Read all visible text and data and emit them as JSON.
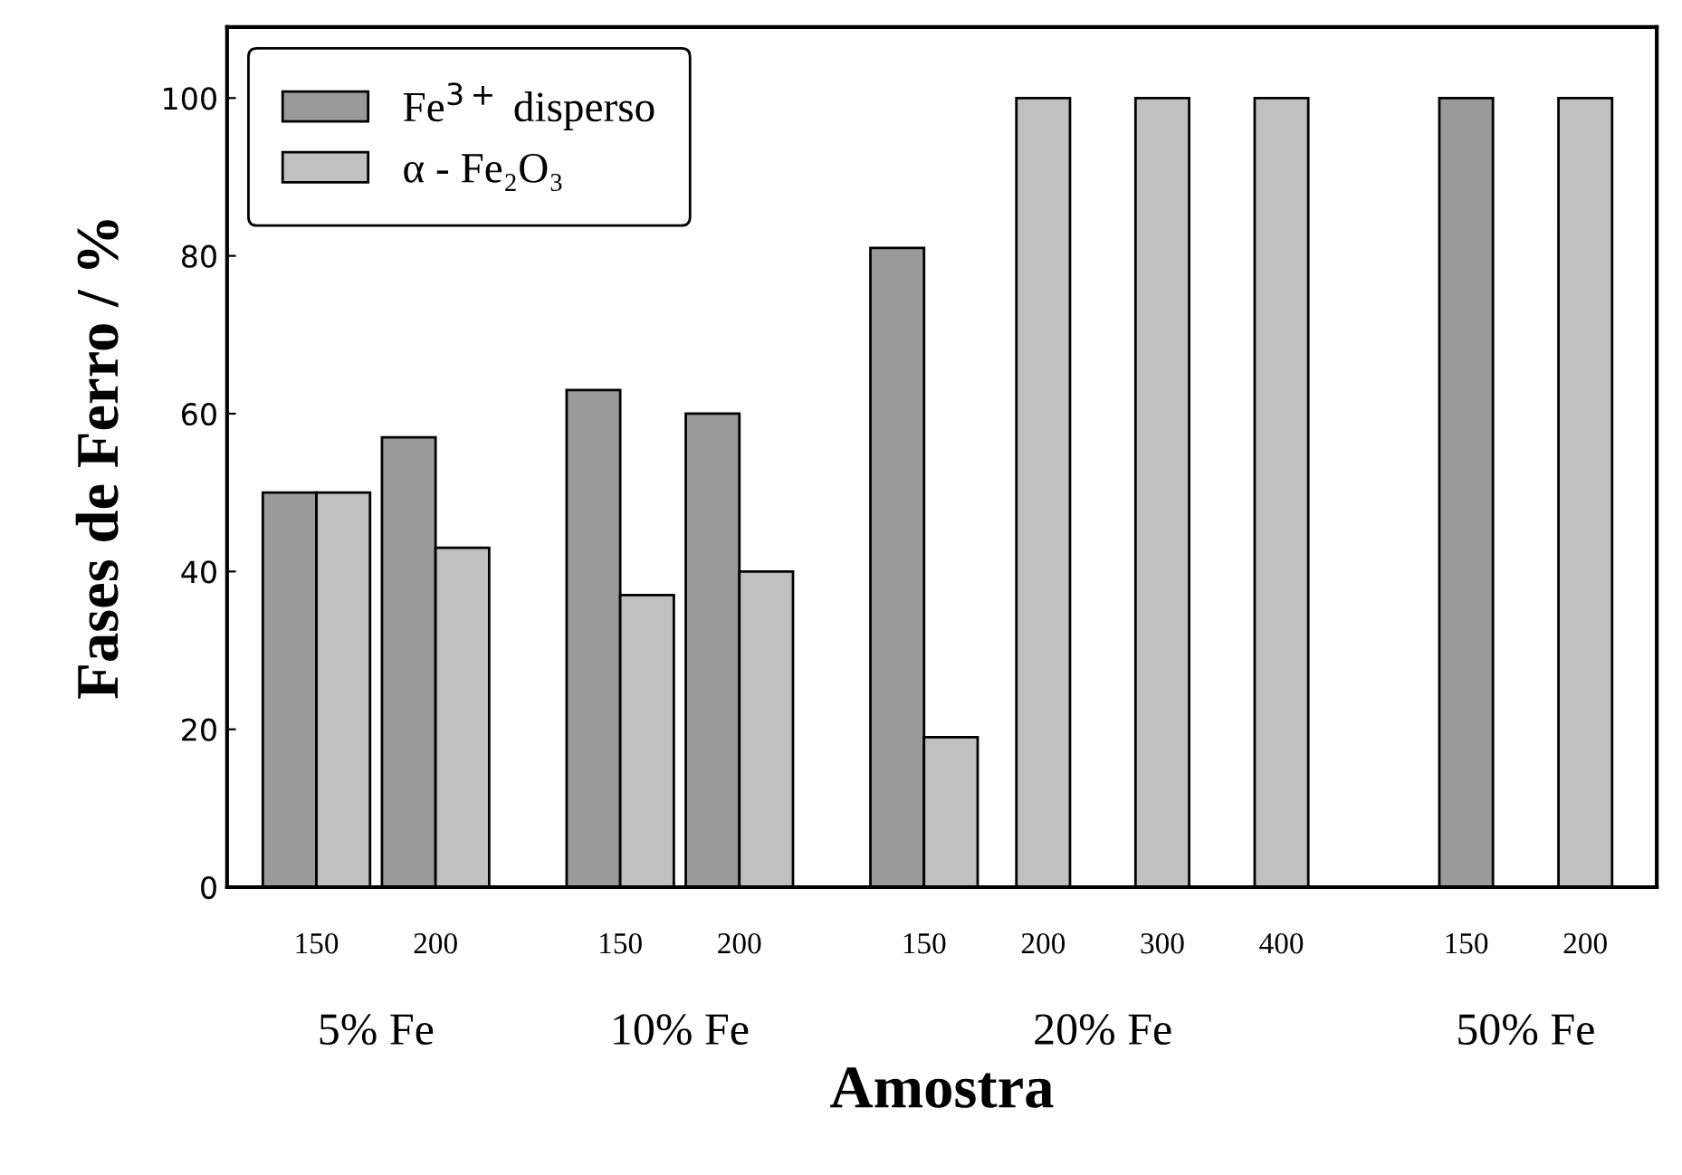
{
  "chart_data": {
    "type": "bar",
    "xlabel": "Amostra",
    "ylabel": "Fases de Ferro / %",
    "categories": [
      "150",
      "200",
      "150",
      "200",
      "150",
      "200",
      "300",
      "400",
      "150",
      "200"
    ],
    "series": [
      {
        "name": "Fe$^{3+}$ disperso",
        "color": "#9a9a9a",
        "values": [
          50,
          57,
          63,
          60,
          81,
          null,
          null,
          null,
          100,
          null
        ]
      },
      {
        "name": "α - Fe₂O₃",
        "color": "#c0c0c0",
        "values": [
          50,
          43,
          37,
          40,
          19,
          100,
          100,
          100,
          null,
          100
        ]
      }
    ],
    "annotations": [
      "5% Fe",
      "10% Fe",
      "20% Fe",
      "50% Fe"
    ],
    "ylim": [
      0,
      109
    ],
    "yticks": [
      0,
      20,
      40,
      60,
      80,
      100
    ],
    "grid": false,
    "legend": "top left"
  }
}
